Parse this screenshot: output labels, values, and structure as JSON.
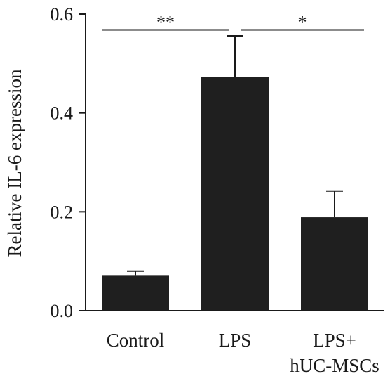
{
  "chart_data": {
    "type": "bar",
    "title": "",
    "xlabel": "",
    "ylabel": "Relative IL-6 expression",
    "ylim": [
      0,
      0.6
    ],
    "yticks": [
      "0.0",
      "0.2",
      "0.4",
      "0.6"
    ],
    "categories": [
      [
        "Control"
      ],
      [
        "LPS"
      ],
      [
        "LPS+",
        "hUC-MSCs"
      ]
    ],
    "values": [
      0.072,
      0.473,
      0.189
    ],
    "errors": [
      0.008,
      0.083,
      0.053
    ],
    "bar_color": "#1f1f1f",
    "significance": [
      {
        "from": 0,
        "to": 1,
        "label": "**",
        "y": 0.568
      },
      {
        "from": 1,
        "to": 2,
        "label": "*",
        "y": 0.568
      }
    ],
    "grid": false
  }
}
